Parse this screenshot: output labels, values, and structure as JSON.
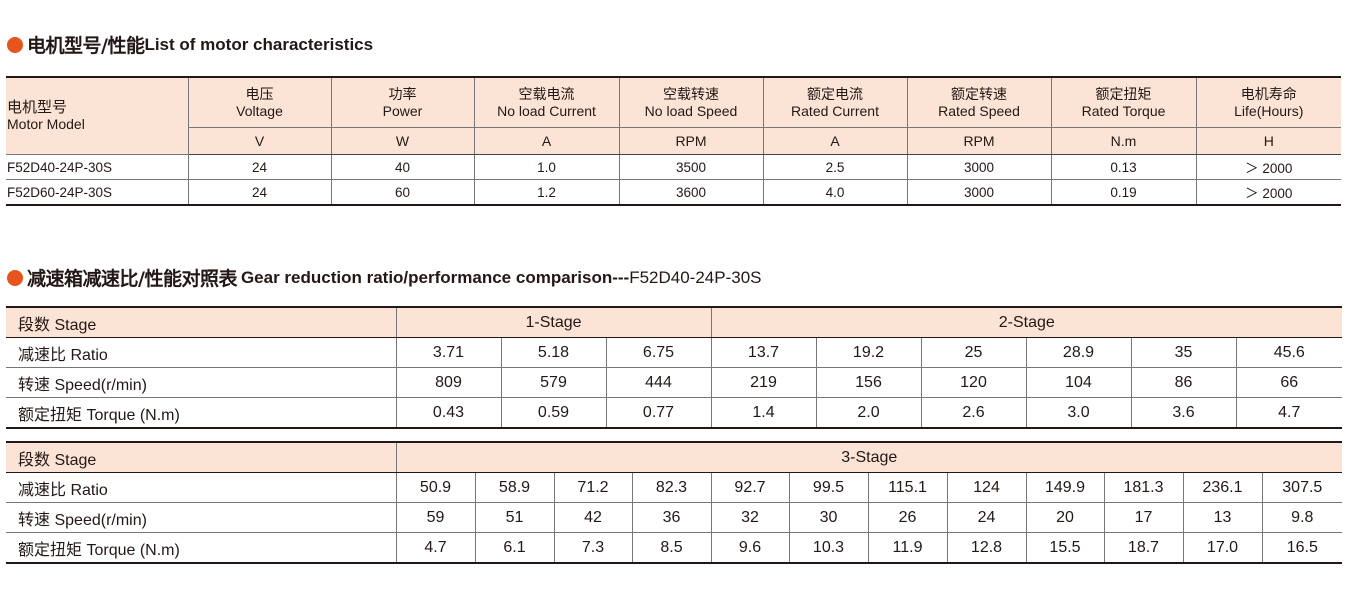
{
  "section1": {
    "title_cn": "电机型号/性能",
    "title_en": "List of motor characteristics"
  },
  "motor_table": {
    "model_header_cn": "电机型号",
    "model_header_en": "Motor Model",
    "columns": [
      {
        "cn": "电压",
        "en": "Voltage",
        "unit": "V"
      },
      {
        "cn": "功率",
        "en": "Power",
        "unit": "W"
      },
      {
        "cn": "空载电流",
        "en": "No load Current",
        "unit": "A"
      },
      {
        "cn": "空载转速",
        "en": "No load Speed",
        "unit": "RPM"
      },
      {
        "cn": "额定电流",
        "en": "Rated Current",
        "unit": "A"
      },
      {
        "cn": "额定转速",
        "en": "Rated Speed",
        "unit": "RPM"
      },
      {
        "cn": "额定扭矩",
        "en": "Rated Torque",
        "unit": "N.m"
      },
      {
        "cn": "电机寿命",
        "en": "Life(Hours)",
        "unit": "H"
      }
    ],
    "rows": [
      {
        "model": "F52D40-24P-30S",
        "values": [
          "24",
          "40",
          "1.0",
          "3500",
          "2.5",
          "3000",
          "0.13",
          "＞ 2000"
        ]
      },
      {
        "model": "F52D60-24P-30S",
        "values": [
          "24",
          "60",
          "1.2",
          "3600",
          "4.0",
          "3000",
          "0.19",
          "＞ 2000"
        ]
      }
    ]
  },
  "section2": {
    "title_cn": "减速箱减速比/性能对照表",
    "title_en": "Gear reduction ratio/performance comparison---",
    "title_model": "F52D40-24P-30S"
  },
  "row_labels": {
    "stage_cn": "段数",
    "stage_en": "Stage",
    "ratio_cn": "减速比",
    "ratio_en": "Ratio",
    "speed_cn": "转速",
    "speed_en": "Speed(r/min)",
    "torque_cn": "额定扭矩",
    "torque_en": "Torque (N.m)"
  },
  "gear_table_1": {
    "stage1_label": "1-Stage",
    "stage2_label": "2-Stage",
    "ratio": [
      "3.71",
      "5.18",
      "6.75",
      "13.7",
      "19.2",
      "25",
      "28.9",
      "35",
      "45.6"
    ],
    "speed": [
      "809",
      "579",
      "444",
      "219",
      "156",
      "120",
      "104",
      "86",
      "66"
    ],
    "torque": [
      "0.43",
      "0.59",
      "0.77",
      "1.4",
      "2.0",
      "2.6",
      "3.0",
      "3.6",
      "4.7"
    ]
  },
  "gear_table_2": {
    "stage3_label": "3-Stage",
    "ratio": [
      "50.9",
      "58.9",
      "71.2",
      "82.3",
      "92.7",
      "99.5",
      "115.1",
      "124",
      "149.9",
      "181.3",
      "236.1",
      "307.5"
    ],
    "speed": [
      "59",
      "51",
      "42",
      "36",
      "32",
      "30",
      "26",
      "24",
      "20",
      "17",
      "13",
      "9.8"
    ],
    "torque": [
      "4.7",
      "6.1",
      "7.3",
      "8.5",
      "9.6",
      "10.3",
      "11.9",
      "12.8",
      "15.5",
      "18.7",
      "17.0",
      "16.5"
    ]
  },
  "colors": {
    "accent_dot": "#e8541e",
    "header_bg": "#fbe4d5",
    "text": "#231815"
  }
}
